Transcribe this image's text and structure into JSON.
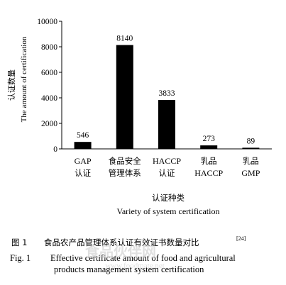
{
  "chart_data": {
    "type": "bar",
    "categories": [
      [
        "GAP",
        "认证"
      ],
      [
        "食品安全",
        "管理体系"
      ],
      [
        "HACCP",
        "认证"
      ],
      [
        "乳品",
        "HACCP"
      ],
      [
        "乳品",
        "GMP"
      ]
    ],
    "values": [
      546,
      8140,
      3833,
      273,
      89
    ],
    "data_labels": [
      "546",
      "8140",
      "3833",
      "273",
      "89"
    ],
    "ylim": [
      0,
      10000
    ],
    "yticks": [
      "0",
      "2000",
      "4000",
      "6000",
      "8000",
      "10000"
    ],
    "ylabel_cn": "认证数量",
    "ylabel_en": "The amount of certification",
    "xlabel_cn": "认证种类",
    "xlabel_en": "Variety of system certification",
    "bar_color": "#000000",
    "grid": false
  },
  "caption": {
    "cn_prefix": "图 1",
    "cn_text": "食品农产品管理体系认证有效证书数量对比",
    "cn_ref": "[24]",
    "en_prefix": "Fig. 1",
    "en_line1": "Effective certificate amount of food and agricultural",
    "en_line2": "products management system certification"
  },
  "watermark": {
    "text_cn": "食品伙伴网",
    "text_url": "www.foodmate.net"
  }
}
